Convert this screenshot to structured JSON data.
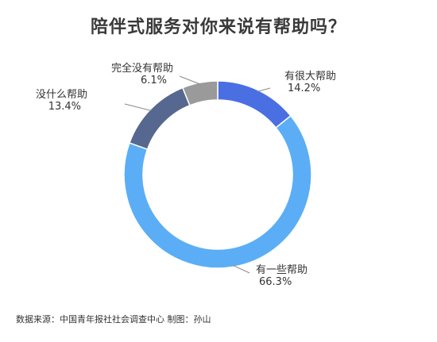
{
  "chart_data": {
    "type": "pie",
    "title": "陪伴式服务对你来说有帮助吗？",
    "slices": [
      {
        "label": "有很大帮助",
        "value": 14.2,
        "value_text": "14.2%",
        "color": "#4a6fe3"
      },
      {
        "label": "有一些帮助",
        "value": 66.3,
        "value_text": "66.3%",
        "color": "#5baef5"
      },
      {
        "label": "没什么帮助",
        "value": 13.4,
        "value_text": "13.4%",
        "color": "#56688f"
      },
      {
        "label": "完全没有帮助",
        "value": 6.1,
        "value_text": "6.1%",
        "color": "#9a9a9a"
      }
    ],
    "donut": true,
    "legend": "none",
    "labels": "outside with leader lines"
  },
  "footer": {
    "source": "数据来源：中国青年报社社会调查中心 制图：孙山"
  }
}
